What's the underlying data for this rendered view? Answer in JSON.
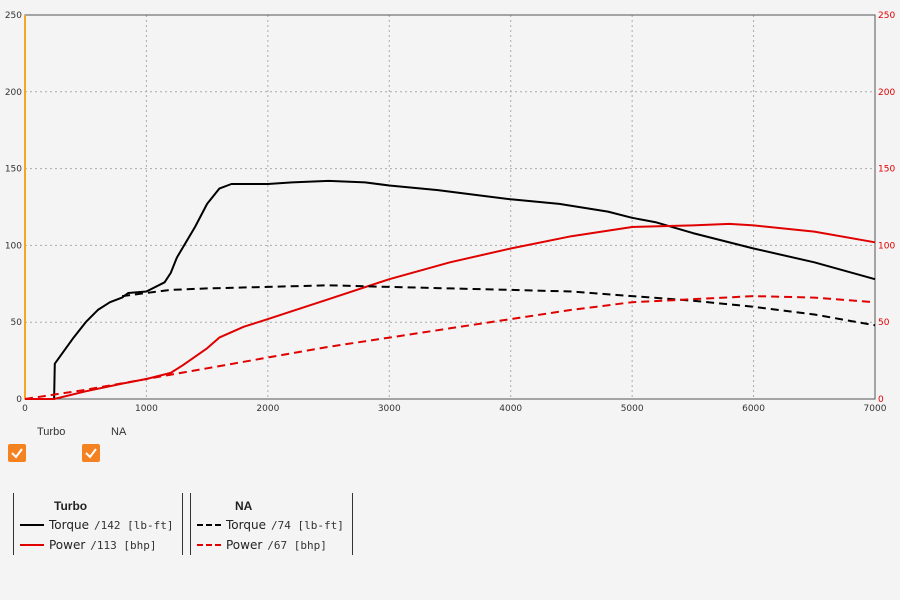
{
  "chart_data": {
    "type": "line",
    "x_range": [
      0,
      7000
    ],
    "x_ticks": [
      0,
      1000,
      2000,
      3000,
      4000,
      5000,
      6000,
      7000
    ],
    "y_left_range": [
      0,
      250
    ],
    "y_right_range": [
      0,
      250
    ],
    "y_ticks": [
      0,
      50,
      100,
      150,
      200,
      250
    ],
    "grid": true,
    "colors": {
      "torque": "#000000",
      "power": "#e00000",
      "right_axis": "#e00000",
      "left_band": "#f5a623"
    },
    "series": [
      {
        "name": "Torque",
        "group": "Turbo",
        "axis": "left",
        "style": "solid",
        "color": "#000000",
        "x": [
          0,
          240,
          245,
          400,
          500,
          600,
          700,
          800,
          850,
          1000,
          1150,
          1200,
          1250,
          1400,
          1500,
          1600,
          1700,
          1800,
          2000,
          2200,
          2500,
          2800,
          3000,
          3400,
          3700,
          4000,
          4400,
          4800,
          5000,
          5200,
          5500,
          6000,
          6500,
          7000
        ],
        "y": [
          0,
          0,
          23,
          40,
          50,
          58,
          63,
          66,
          69,
          70,
          76,
          82,
          92,
          112,
          127,
          137,
          140,
          140,
          140,
          141,
          142,
          141,
          139,
          136,
          133,
          130,
          127,
          122,
          118,
          115,
          108,
          98,
          89,
          78
        ]
      },
      {
        "name": "Power",
        "group": "Turbo",
        "axis": "right",
        "style": "solid",
        "color": "#e00000",
        "x": [
          0,
          240,
          500,
          800,
          1000,
          1200,
          1300,
          1500,
          1600,
          1800,
          2000,
          2500,
          3000,
          3500,
          4000,
          4500,
          5000,
          5500,
          5800,
          6000,
          6500,
          7000
        ],
        "y": [
          0,
          0,
          5,
          10,
          13,
          17,
          22,
          33,
          40,
          47,
          52,
          65,
          78,
          89,
          98,
          106,
          112,
          113,
          114,
          113,
          109,
          102
        ]
      },
      {
        "name": "Torque",
        "group": "NA",
        "axis": "left",
        "style": "dashed",
        "color": "#000000",
        "x": [
          800,
          1000,
          1200,
          1500,
          2000,
          2500,
          3000,
          3500,
          4000,
          4500,
          5000,
          5500,
          6000,
          6500,
          7000
        ],
        "y": [
          67,
          69,
          71,
          72,
          73,
          74,
          73,
          72,
          71,
          70,
          67,
          64,
          60,
          55,
          48
        ]
      },
      {
        "name": "Power",
        "group": "NA",
        "axis": "right",
        "style": "dashed",
        "color": "#e00000",
        "x": [
          0,
          500,
          1000,
          1500,
          2000,
          2500,
          3000,
          3500,
          4000,
          4500,
          5000,
          5500,
          6000,
          6500,
          7000
        ],
        "y": [
          0,
          6,
          13,
          20,
          27,
          34,
          40,
          46,
          52,
          58,
          63,
          65,
          67,
          66,
          63
        ]
      }
    ]
  },
  "toggles": [
    {
      "label": "Turbo",
      "checked": true
    },
    {
      "label": "NA",
      "checked": true
    }
  ],
  "legend": {
    "turbo": {
      "title": "Turbo",
      "torque_name": "Torque",
      "torque_value": "/142 [lb-ft]",
      "power_name": "Power",
      "power_value": "/113 [bhp]"
    },
    "na": {
      "title": "NA",
      "torque_name": "Torque",
      "torque_value": "/74 [lb-ft]",
      "power_name": "Power",
      "power_value": "/67 [bhp]"
    }
  }
}
